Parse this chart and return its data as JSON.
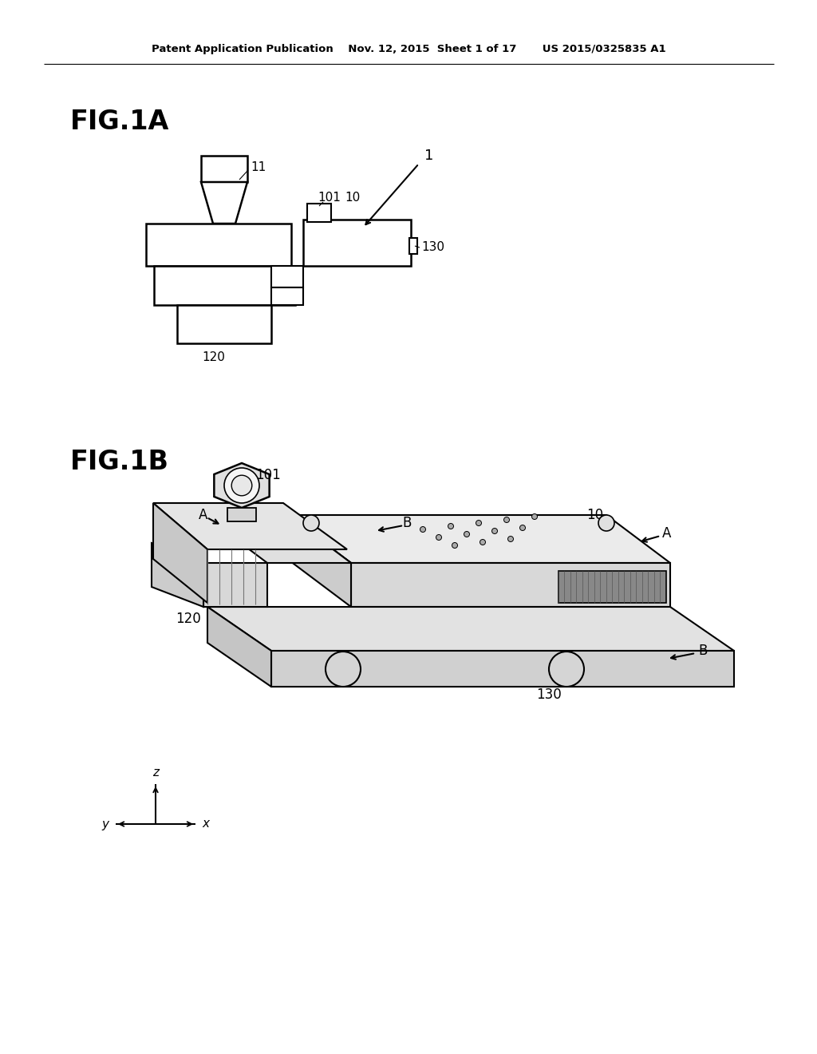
{
  "background_color": "#ffffff",
  "header_line1": "Patent Application Publication    Nov. 12, 2015  Sheet 1 of 17       US 2015/0325835 A1",
  "fig1a_label": "FIG.1A",
  "fig1b_label": "FIG.1B"
}
